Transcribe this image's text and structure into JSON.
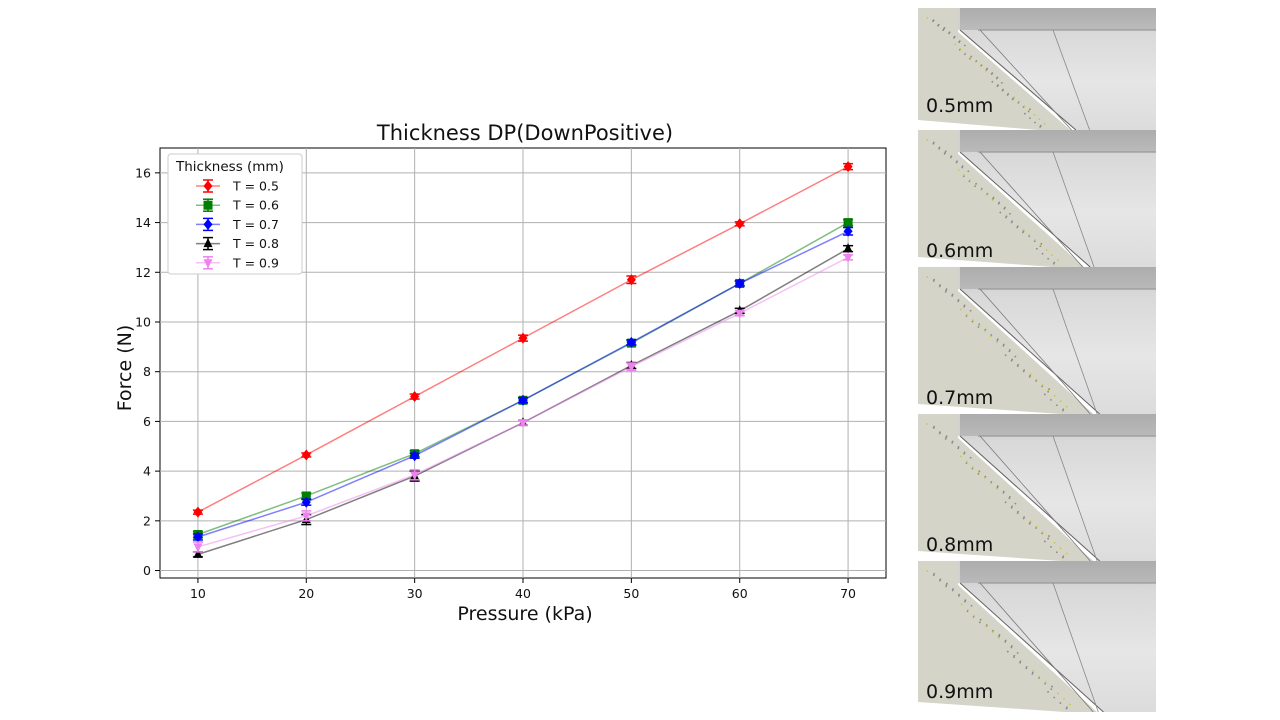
{
  "chart_data": {
    "type": "line",
    "title": "Thickness DP(DownPositive)",
    "xlabel": "Pressure (kPa)",
    "ylabel": "Force (N)",
    "x": [
      10,
      20,
      30,
      40,
      50,
      60,
      70
    ],
    "xticks": [
      "10",
      "20",
      "30",
      "40",
      "50",
      "60",
      "70"
    ],
    "yticks": [
      "0",
      "2",
      "4",
      "6",
      "8",
      "10",
      "12",
      "14",
      "16"
    ],
    "xlim": [
      6.5,
      73.5
    ],
    "ylim": [
      -0.3,
      17.0
    ],
    "grid": true,
    "legend_title": "Thickness (mm)",
    "legend_position": "top-left",
    "series": [
      {
        "name": "T = 0.5",
        "color": "#ff0000",
        "marker": "diamond",
        "values": [
          2.35,
          4.65,
          7.0,
          9.35,
          11.7,
          13.95,
          16.25
        ],
        "errors": [
          0.08,
          0.08,
          0.1,
          0.12,
          0.15,
          0.08,
          0.12
        ]
      },
      {
        "name": "T = 0.6",
        "color": "#008000",
        "marker": "square",
        "values": [
          1.45,
          3.0,
          4.7,
          6.85,
          9.15,
          11.55,
          14.0
        ],
        "errors": [
          0.12,
          0.12,
          0.12,
          0.1,
          0.1,
          0.1,
          0.12
        ]
      },
      {
        "name": "T = 0.7",
        "color": "#0000ff",
        "marker": "diamond",
        "values": [
          1.35,
          2.75,
          4.62,
          6.85,
          9.18,
          11.55,
          13.65
        ],
        "errors": [
          0.12,
          0.12,
          0.1,
          0.1,
          0.1,
          0.1,
          0.15
        ]
      },
      {
        "name": "T = 0.8",
        "color": "#000000",
        "marker": "triangle-up",
        "values": [
          0.65,
          2.05,
          3.8,
          5.95,
          8.25,
          10.45,
          12.95
        ],
        "errors": [
          0.1,
          0.2,
          0.2,
          0.1,
          0.12,
          0.1,
          0.12
        ]
      },
      {
        "name": "T = 0.9",
        "color": "#ee82ee",
        "marker": "triangle-down",
        "values": [
          0.95,
          2.2,
          3.85,
          5.95,
          8.2,
          10.35,
          12.6
        ],
        "errors": [
          0.2,
          0.2,
          0.2,
          0.1,
          0.15,
          0.1,
          0.1
        ]
      }
    ]
  },
  "panels": [
    {
      "label": "0.5mm"
    },
    {
      "label": "0.6mm"
    },
    {
      "label": "0.7mm"
    },
    {
      "label": "0.8mm"
    },
    {
      "label": "0.9mm"
    }
  ]
}
